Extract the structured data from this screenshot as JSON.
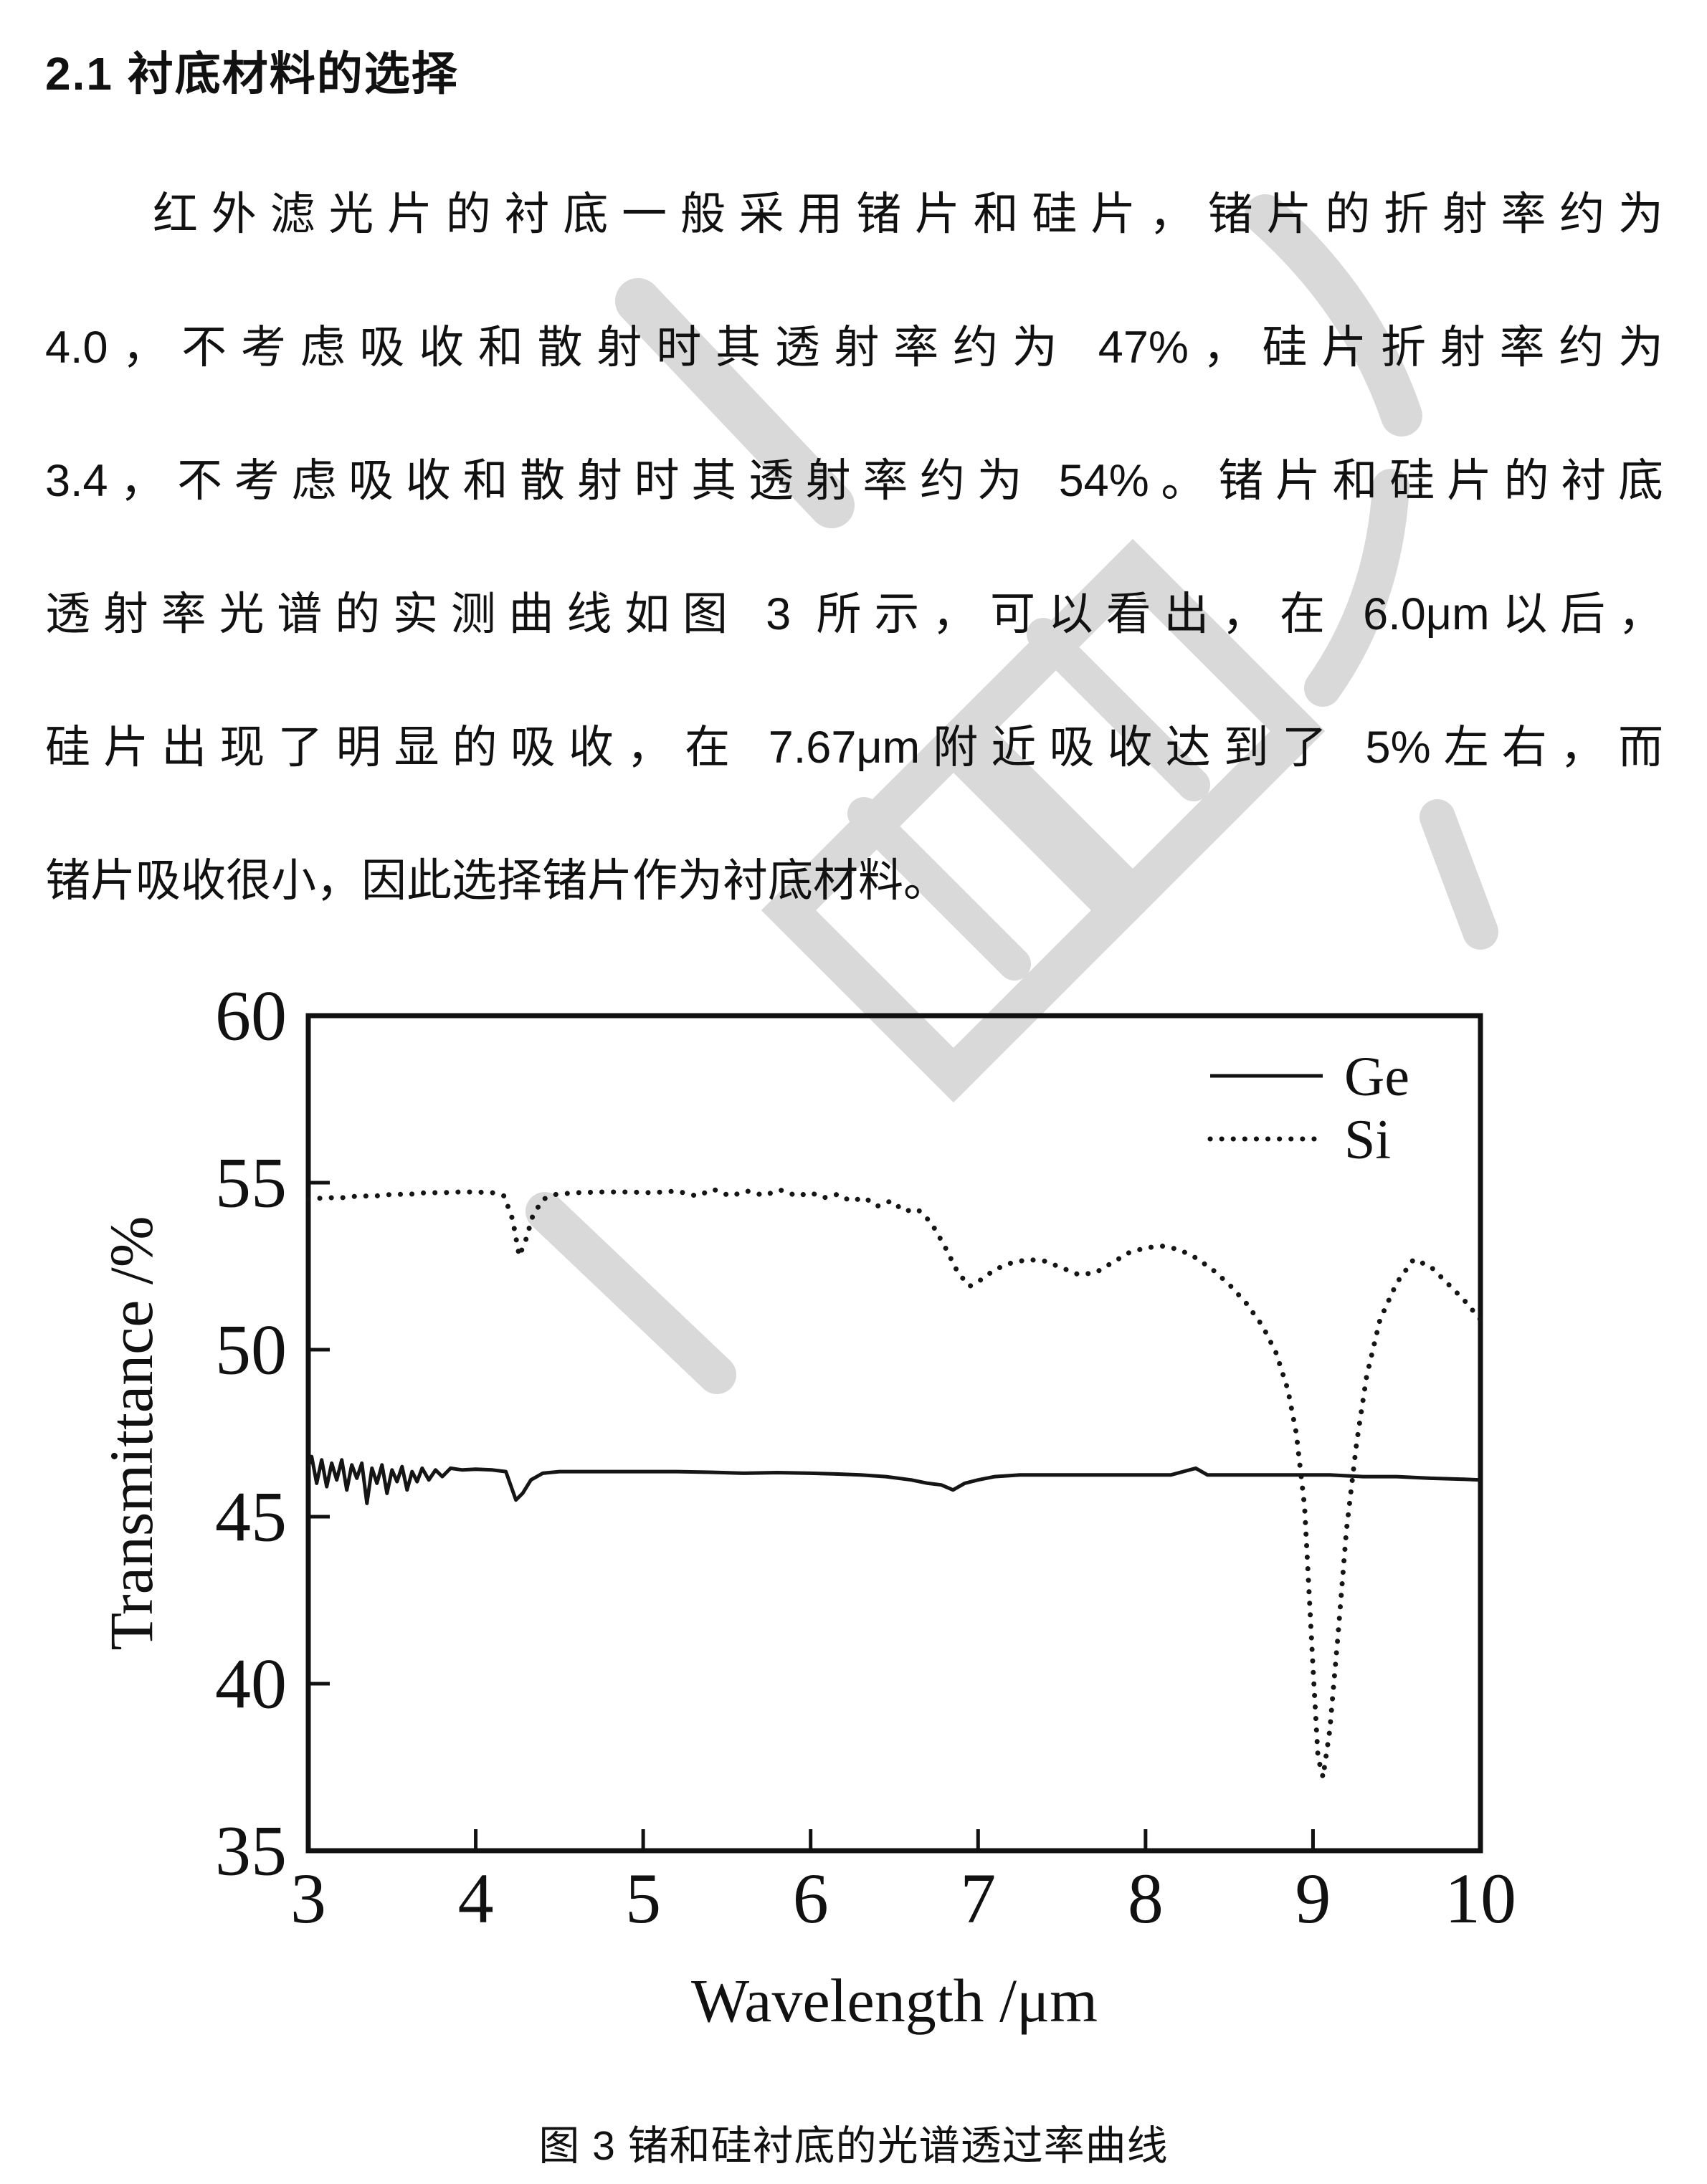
{
  "page": {
    "heading": "2.1 衬底材料的选择",
    "paragraph_lines": [
      "红外滤光片的衬底一般采用锗片和硅片，锗片的折射率约为",
      "4.0，不考虑吸收和散射时其透射率约为 47%，硅片折射率约为",
      "3.4，不考虑吸收和散射时其透射率约为 54%。锗片和硅片的衬底",
      "透射率光谱的实测曲线如图 3 所示，可以看出，在 6.0μm以后，",
      "硅片出现了明显的吸收，在 7.67μm附近吸收达到了 5%左右，而",
      "锗片吸收很小，因此选择锗片作为衬底材料。"
    ],
    "caption": "图 3 锗和硅衬底的光谱透过率曲线"
  },
  "watermark": {
    "color": "#d9d9d9"
  },
  "chart_data": {
    "type": "line",
    "title": "",
    "xlabel": "Wavelength /μm",
    "ylabel": "Transmittance /%",
    "xlim": [
      3,
      10
    ],
    "ylim": [
      35,
      60
    ],
    "xticks": [
      3,
      4,
      5,
      6,
      7,
      8,
      9,
      10
    ],
    "yticks": [
      35,
      40,
      45,
      50,
      55,
      60
    ],
    "grid": false,
    "legend_position": "top-right-inside",
    "series": [
      {
        "name": "Ge",
        "style": "solid",
        "color": "#151515",
        "points": [
          [
            3.0,
            46.5
          ],
          [
            3.02,
            46.8
          ],
          [
            3.05,
            46.0
          ],
          [
            3.08,
            46.7
          ],
          [
            3.11,
            45.9
          ],
          [
            3.14,
            46.6
          ],
          [
            3.17,
            46.1
          ],
          [
            3.2,
            46.7
          ],
          [
            3.23,
            45.8
          ],
          [
            3.26,
            46.55
          ],
          [
            3.29,
            46.15
          ],
          [
            3.32,
            46.6
          ],
          [
            3.35,
            45.4
          ],
          [
            3.38,
            46.45
          ],
          [
            3.41,
            46.0
          ],
          [
            3.44,
            46.55
          ],
          [
            3.47,
            45.7
          ],
          [
            3.5,
            46.4
          ],
          [
            3.53,
            46.05
          ],
          [
            3.56,
            46.5
          ],
          [
            3.59,
            45.8
          ],
          [
            3.62,
            46.35
          ],
          [
            3.65,
            46.05
          ],
          [
            3.68,
            46.45
          ],
          [
            3.72,
            46.1
          ],
          [
            3.76,
            46.4
          ],
          [
            3.8,
            46.2
          ],
          [
            3.85,
            46.45
          ],
          [
            3.92,
            46.4
          ],
          [
            4.0,
            46.42
          ],
          [
            4.1,
            46.4
          ],
          [
            4.18,
            46.35
          ],
          [
            4.24,
            45.5
          ],
          [
            4.28,
            45.7
          ],
          [
            4.33,
            46.1
          ],
          [
            4.4,
            46.3
          ],
          [
            4.5,
            46.35
          ],
          [
            4.65,
            46.35
          ],
          [
            4.8,
            46.35
          ],
          [
            5.0,
            46.35
          ],
          [
            5.2,
            46.35
          ],
          [
            5.4,
            46.33
          ],
          [
            5.6,
            46.3
          ],
          [
            5.8,
            46.32
          ],
          [
            6.0,
            46.3
          ],
          [
            6.15,
            46.28
          ],
          [
            6.3,
            46.25
          ],
          [
            6.45,
            46.2
          ],
          [
            6.6,
            46.1
          ],
          [
            6.7,
            46.0
          ],
          [
            6.78,
            45.95
          ],
          [
            6.85,
            45.8
          ],
          [
            6.92,
            46.0
          ],
          [
            7.0,
            46.1
          ],
          [
            7.1,
            46.2
          ],
          [
            7.25,
            46.25
          ],
          [
            7.4,
            46.25
          ],
          [
            7.6,
            46.25
          ],
          [
            7.8,
            46.25
          ],
          [
            8.0,
            46.25
          ],
          [
            8.15,
            46.25
          ],
          [
            8.3,
            46.45
          ],
          [
            8.37,
            46.25
          ],
          [
            8.5,
            46.25
          ],
          [
            8.7,
            46.25
          ],
          [
            8.9,
            46.25
          ],
          [
            9.1,
            46.25
          ],
          [
            9.3,
            46.2
          ],
          [
            9.5,
            46.2
          ],
          [
            9.7,
            46.15
          ],
          [
            9.9,
            46.12
          ],
          [
            10.0,
            46.1
          ]
        ]
      },
      {
        "name": "Si",
        "style": "dotted",
        "color": "#151515",
        "points": [
          [
            3.0,
            54.5
          ],
          [
            3.1,
            54.55
          ],
          [
            3.2,
            54.55
          ],
          [
            3.3,
            54.6
          ],
          [
            3.4,
            54.6
          ],
          [
            3.5,
            54.65
          ],
          [
            3.6,
            54.65
          ],
          [
            3.7,
            54.7
          ],
          [
            3.8,
            54.7
          ],
          [
            3.9,
            54.72
          ],
          [
            4.0,
            54.72
          ],
          [
            4.1,
            54.7
          ],
          [
            4.17,
            54.6
          ],
          [
            4.22,
            53.9
          ],
          [
            4.26,
            52.8
          ],
          [
            4.3,
            53.3
          ],
          [
            4.34,
            54.0
          ],
          [
            4.4,
            54.5
          ],
          [
            4.48,
            54.65
          ],
          [
            4.6,
            54.7
          ],
          [
            4.75,
            54.72
          ],
          [
            4.9,
            54.72
          ],
          [
            5.05,
            54.7
          ],
          [
            5.2,
            54.75
          ],
          [
            5.32,
            54.6
          ],
          [
            5.42,
            54.8
          ],
          [
            5.52,
            54.6
          ],
          [
            5.62,
            54.75
          ],
          [
            5.72,
            54.62
          ],
          [
            5.82,
            54.78
          ],
          [
            5.92,
            54.6
          ],
          [
            6.0,
            54.7
          ],
          [
            6.08,
            54.55
          ],
          [
            6.16,
            54.65
          ],
          [
            6.24,
            54.45
          ],
          [
            6.32,
            54.55
          ],
          [
            6.4,
            54.3
          ],
          [
            6.48,
            54.45
          ],
          [
            6.56,
            54.15
          ],
          [
            6.64,
            54.2
          ],
          [
            6.72,
            53.8
          ],
          [
            6.8,
            53.1
          ],
          [
            6.88,
            52.3
          ],
          [
            6.95,
            51.9
          ],
          [
            7.02,
            52.1
          ],
          [
            7.1,
            52.4
          ],
          [
            7.2,
            52.6
          ],
          [
            7.3,
            52.7
          ],
          [
            7.4,
            52.65
          ],
          [
            7.5,
            52.45
          ],
          [
            7.6,
            52.25
          ],
          [
            7.7,
            52.3
          ],
          [
            7.8,
            52.6
          ],
          [
            7.9,
            52.9
          ],
          [
            8.0,
            53.05
          ],
          [
            8.1,
            53.1
          ],
          [
            8.2,
            53.0
          ],
          [
            8.3,
            52.75
          ],
          [
            8.4,
            52.4
          ],
          [
            8.5,
            51.95
          ],
          [
            8.6,
            51.4
          ],
          [
            8.7,
            50.7
          ],
          [
            8.78,
            49.9
          ],
          [
            8.85,
            48.8
          ],
          [
            8.9,
            47.5
          ],
          [
            8.95,
            45.3
          ],
          [
            9.0,
            40.5
          ],
          [
            9.03,
            37.8
          ],
          [
            9.06,
            37.2
          ],
          [
            9.1,
            38.6
          ],
          [
            9.15,
            41.5
          ],
          [
            9.2,
            44.6
          ],
          [
            9.26,
            47.2
          ],
          [
            9.32,
            49.2
          ],
          [
            9.4,
            50.9
          ],
          [
            9.5,
            52.0
          ],
          [
            9.6,
            52.7
          ],
          [
            9.7,
            52.5
          ],
          [
            9.8,
            52.0
          ],
          [
            9.9,
            51.5
          ],
          [
            10.0,
            50.9
          ]
        ]
      }
    ]
  }
}
